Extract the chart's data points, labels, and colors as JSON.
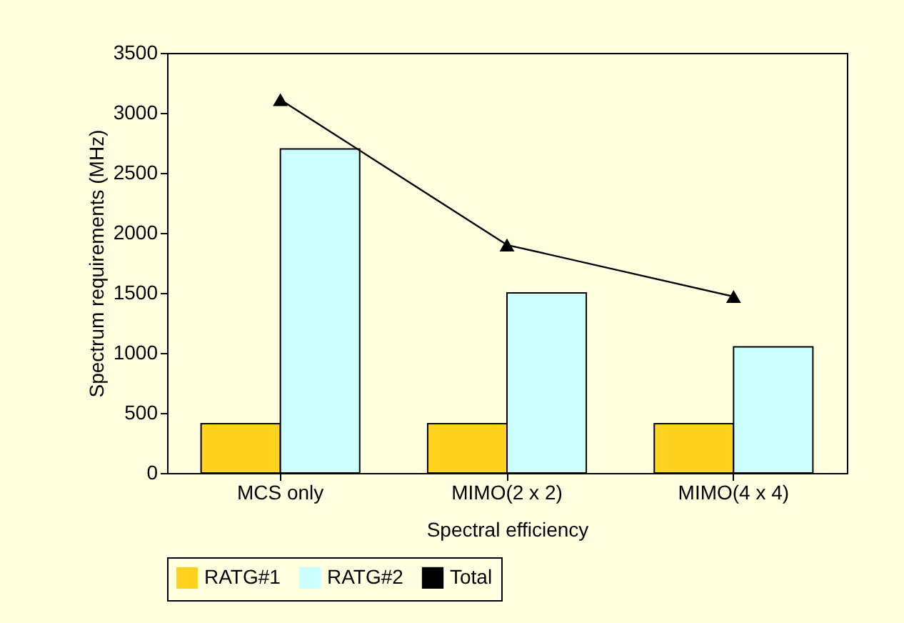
{
  "chart_data": {
    "type": "bar",
    "xlabel": "Spectral efficiency",
    "ylabel": "Spectrum requirements (MHz)",
    "categories": [
      "MCS only",
      "MIMO(2 x 2)",
      "MIMO(4 x 4)"
    ],
    "series": [
      {
        "name": "RATG#1",
        "color": "#ffd320",
        "values": [
          410,
          410,
          410
        ]
      },
      {
        "name": "RATG#2",
        "color": "#ccffff",
        "values": [
          2700,
          1500,
          1050
        ]
      },
      {
        "name": "Total",
        "type": "line",
        "color": "#000000",
        "marker": "triangle",
        "values": [
          3110,
          1900,
          1470
        ]
      }
    ],
    "ylim": [
      0,
      3500
    ],
    "yticks": [
      0,
      500,
      1000,
      1500,
      2000,
      2500,
      3000,
      3500
    ],
    "grid": false,
    "legend": "bottom"
  }
}
